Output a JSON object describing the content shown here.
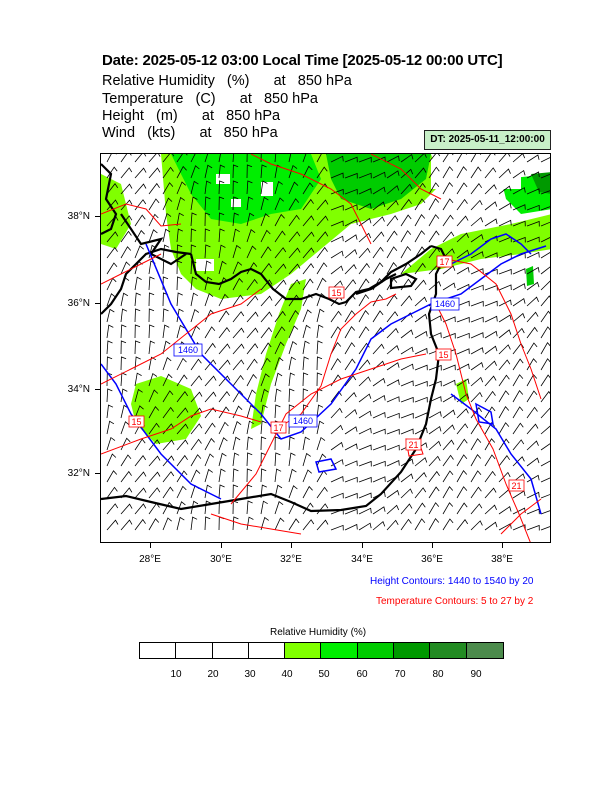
{
  "header": {
    "title": "Date: 2025-05-12  03:00 Local Time [2025-05-12  00:00 UTC]",
    "lines": [
      "Relative Humidity   (%)      at   850 hPa",
      "Temperature   (C)      at   850 hPa",
      "Height   (m)      at   850 hPa",
      "Wind   (kts)      at   850 hPa"
    ],
    "dt_badge": "DT: 2025-05-11_12:00:00"
  },
  "map": {
    "lat_labels": [
      "38°N",
      "36°N",
      "34°N",
      "32°N"
    ],
    "lon_labels": [
      "28°E",
      "30°E",
      "32°E",
      "34°E",
      "36°E",
      "38°E"
    ],
    "contour_labels": {
      "height": [
        "1460",
        "1460",
        "1460"
      ],
      "temperature": [
        "15",
        "17",
        "15",
        "17",
        "21",
        "15",
        "21"
      ]
    },
    "colors": {
      "height_contour": "#0000ff",
      "temperature_contour": "#ff0000",
      "coastline": "#000000",
      "wind_barb": "#000000"
    }
  },
  "notes": {
    "height": "Height Contours: 1440 to 1540 by 20",
    "temperature": "Temperature Contours: 5 to 27 by 2"
  },
  "colorbar": {
    "title": "Relative Humidity  (%)",
    "labels": [
      "10",
      "20",
      "30",
      "40",
      "50",
      "60",
      "70",
      "80",
      "90"
    ],
    "colors": [
      "#ffffff",
      "#ffffff",
      "#ffffff",
      "#ffffff",
      "#80ff00",
      "#00ee00",
      "#00cc00",
      "#009900",
      "#228b22",
      "#4c8b4c"
    ]
  }
}
